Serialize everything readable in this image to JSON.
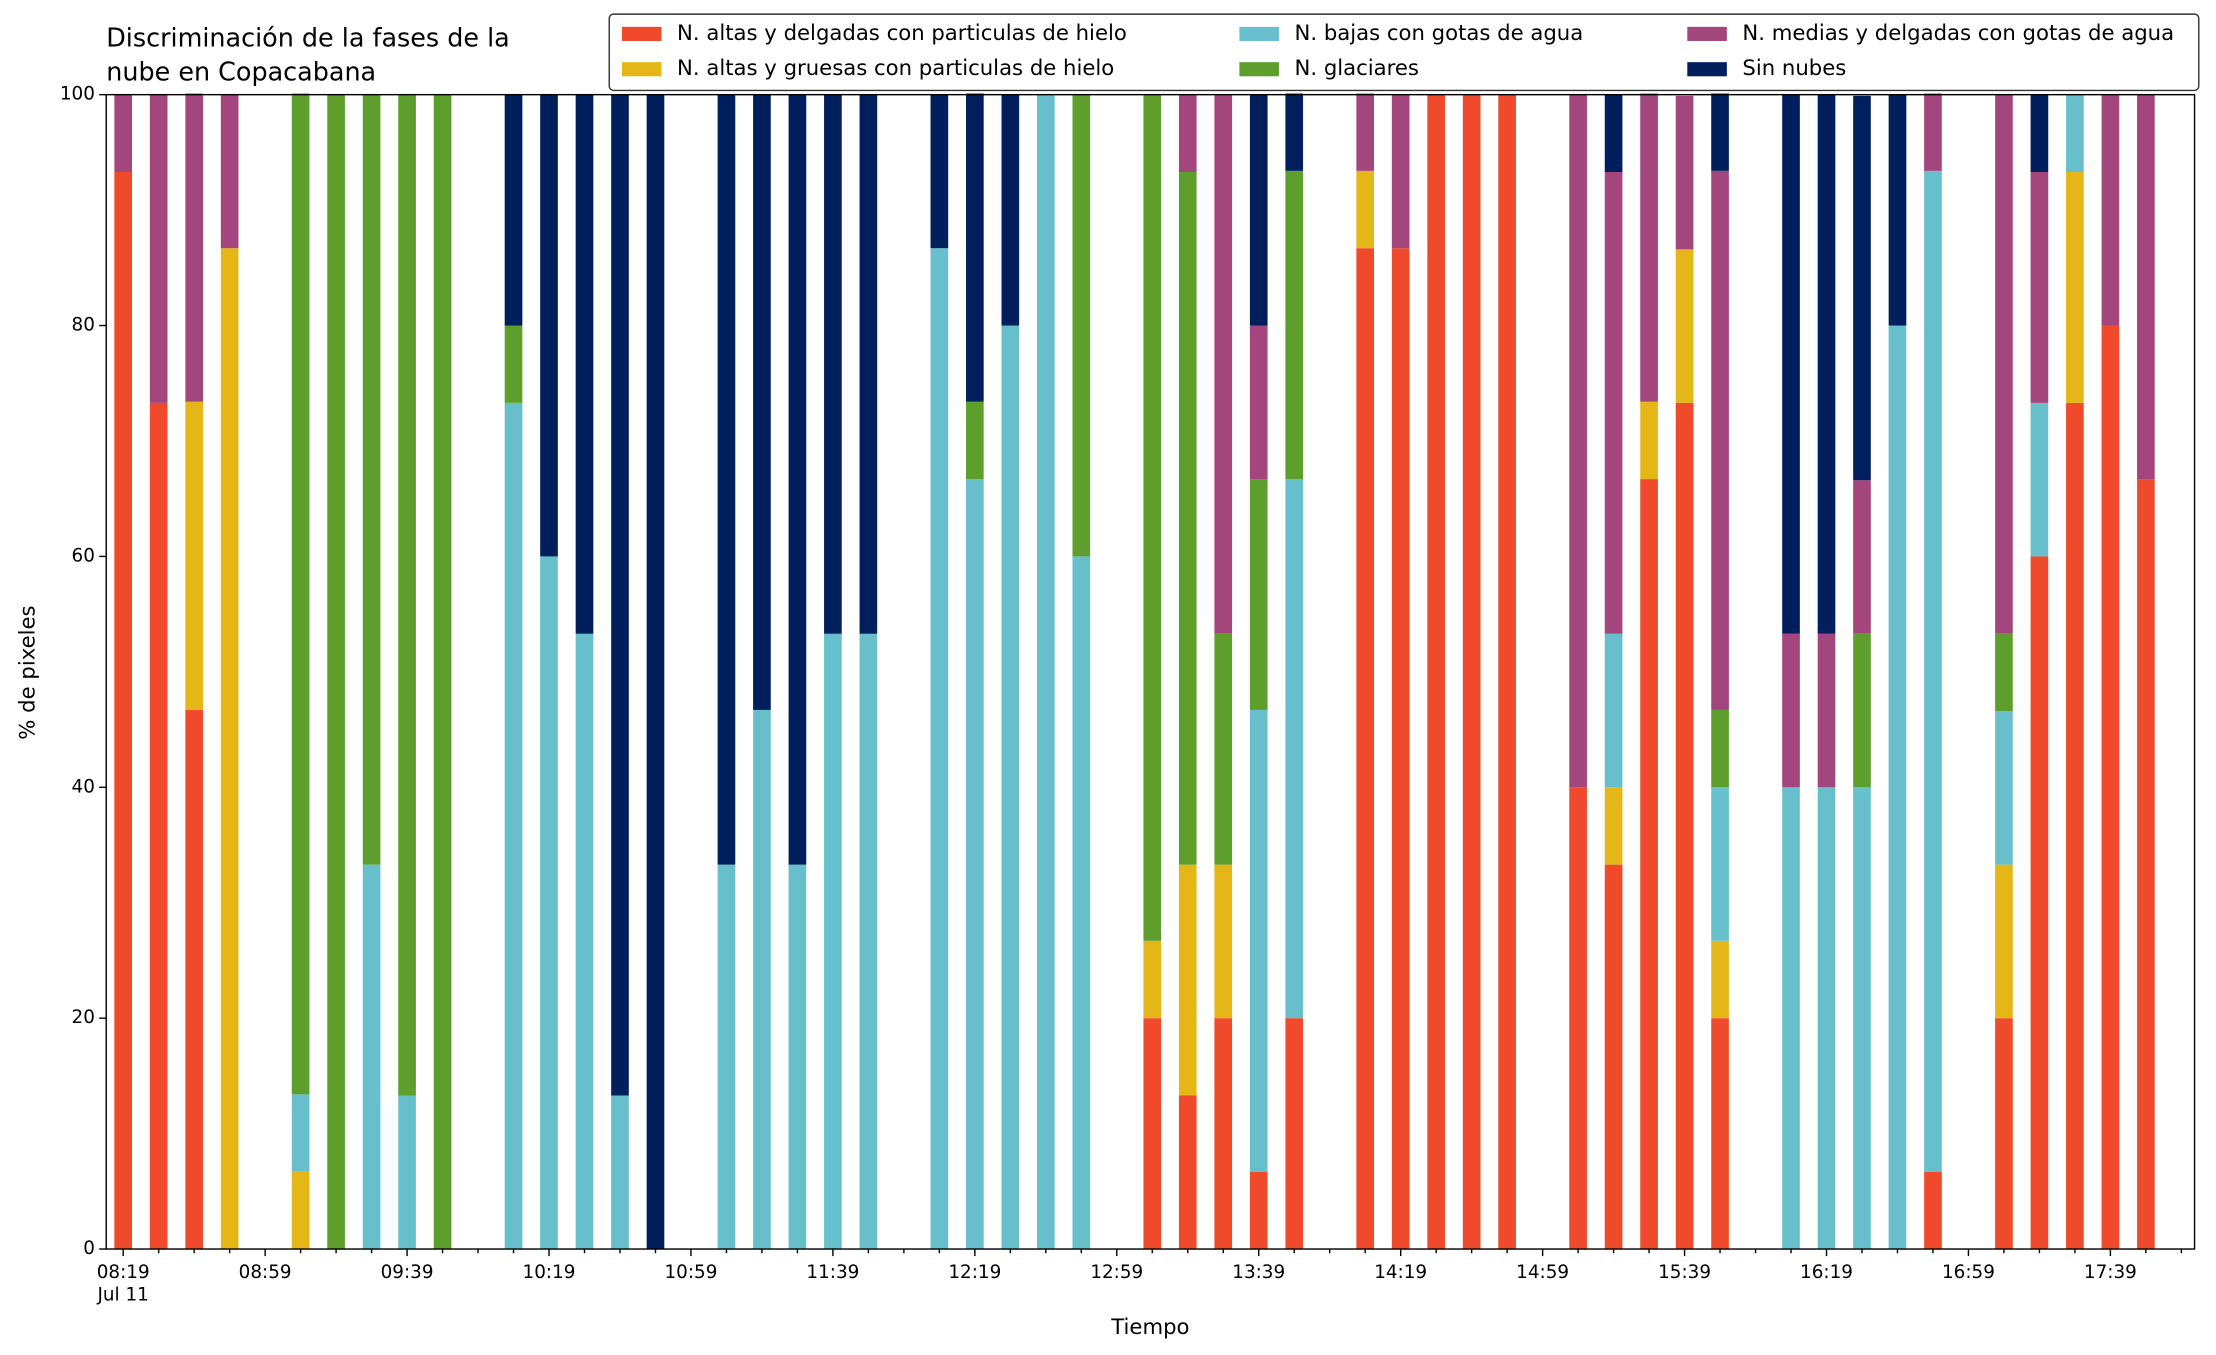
{
  "chart_data": {
    "type": "stacked_bar",
    "title": [
      "Discriminación de la fases de la",
      "nube en Copacabana"
    ],
    "x_label": "Tiempo",
    "y_label": "% de pixeles",
    "date_label": "Jul 11",
    "categories": [
      "08:19",
      null,
      null,
      null,
      "08:59",
      null,
      null,
      null,
      "09:39",
      null,
      null,
      null,
      "10:19",
      null,
      null,
      null,
      "10:59",
      null,
      null,
      null,
      "11:39",
      null,
      null,
      null,
      "12:19",
      null,
      null,
      null,
      "12:59",
      null,
      null,
      null,
      "13:39",
      null,
      null,
      null,
      "14:19",
      null,
      null,
      null,
      "14:59",
      null,
      null,
      null,
      "15:39",
      null,
      null,
      null,
      "16:19",
      null,
      null,
      null,
      "16:59",
      null,
      null,
      null,
      "17:39",
      null,
      null
    ],
    "ylim": [
      0,
      100
    ],
    "yticks": [
      0,
      20,
      40,
      60,
      80,
      100
    ],
    "legend": "upper right",
    "series": [
      {
        "name": "N. altas y delgadas con particulas de hielo",
        "color": "#ef4a2b",
        "values": [
          93.3,
          73.3,
          46.7,
          0,
          null,
          0,
          0,
          0,
          0,
          0,
          null,
          0,
          0,
          0,
          0,
          0,
          null,
          0,
          0,
          0,
          0,
          0,
          null,
          0,
          0,
          0,
          0,
          0,
          null,
          20,
          13.3,
          20,
          6.7,
          20,
          null,
          86.7,
          86.7,
          100,
          100,
          100,
          null,
          40,
          33.3,
          66.7,
          73.3,
          20,
          null,
          0,
          0,
          0,
          0,
          6.7,
          null,
          20,
          60,
          73.3,
          80,
          66.7,
          null
        ]
      },
      {
        "name": "N. altas y gruesas con particulas de hielo",
        "color": "#e5b618",
        "values": [
          0,
          0,
          26.7,
          86.7,
          null,
          6.7,
          0,
          0,
          0,
          0,
          null,
          0,
          0,
          0,
          0,
          0,
          null,
          0,
          0,
          0,
          0,
          0,
          null,
          0,
          0,
          0,
          0,
          0,
          null,
          6.7,
          20,
          13.3,
          0,
          0,
          null,
          6.7,
          0,
          0,
          0,
          0,
          null,
          0,
          6.7,
          6.7,
          13.3,
          6.7,
          null,
          0,
          0,
          0,
          0,
          0,
          null,
          13.3,
          0,
          20,
          0,
          0,
          null
        ]
      },
      {
        "name": "N. bajas con gotas de agua",
        "color": "#67bfcb",
        "values": [
          0,
          0,
          0,
          0,
          null,
          6.7,
          0,
          33.3,
          13.3,
          0,
          null,
          73.3,
          60,
          53.3,
          13.3,
          0,
          null,
          33.3,
          46.7,
          33.3,
          53.3,
          53.3,
          null,
          86.7,
          66.7,
          80,
          100,
          60,
          null,
          0,
          0,
          0,
          40,
          46.7,
          null,
          0,
          0,
          0,
          0,
          0,
          null,
          0,
          13.3,
          0,
          0,
          13.3,
          null,
          40,
          40,
          40,
          80,
          86.7,
          null,
          13.3,
          13.3,
          6.7,
          0,
          0,
          null
        ]
      },
      {
        "name": "N. glaciares",
        "color": "#5d9e2d",
        "values": [
          0,
          0,
          0,
          0,
          null,
          86.7,
          100,
          66.7,
          86.7,
          100,
          null,
          6.7,
          0,
          0,
          0,
          0,
          null,
          0,
          0,
          0,
          0,
          0,
          null,
          0,
          6.7,
          0,
          0,
          40,
          null,
          73.3,
          60,
          20,
          20,
          26.7,
          null,
          0,
          0,
          0,
          0,
          0,
          null,
          0,
          0,
          0,
          0,
          6.7,
          null,
          0,
          0,
          13.3,
          0,
          0,
          null,
          6.7,
          0,
          0,
          0,
          0,
          null
        ]
      },
      {
        "name": "N. medias y delgadas con gotas de agua",
        "color": "#a2467d",
        "values": [
          6.7,
          26.7,
          26.7,
          13.3,
          null,
          0,
          0,
          0,
          0,
          0,
          null,
          0,
          0,
          0,
          0,
          0,
          null,
          0,
          0,
          0,
          0,
          0,
          null,
          0,
          0,
          0,
          0,
          0,
          null,
          0,
          6.7,
          46.7,
          13.3,
          0,
          null,
          6.7,
          13.3,
          0,
          0,
          0,
          null,
          60,
          40,
          26.7,
          13.3,
          46.7,
          null,
          13.3,
          13.3,
          13.3,
          0,
          6.7,
          null,
          46.7,
          20,
          0,
          20,
          33.3,
          null
        ]
      },
      {
        "name": "Sin nubes",
        "color": "#001f5c",
        "values": [
          0,
          0,
          0,
          0,
          null,
          0,
          0,
          0,
          0,
          0,
          null,
          20,
          40,
          46.7,
          86.7,
          100,
          null,
          66.7,
          53.3,
          66.7,
          46.7,
          46.7,
          null,
          13.3,
          26.7,
          20,
          0,
          0,
          null,
          0,
          0,
          0,
          20,
          6.7,
          null,
          0,
          0,
          0,
          0,
          0,
          null,
          0,
          6.7,
          0,
          0,
          6.7,
          null,
          46.7,
          46.7,
          33.3,
          20,
          0,
          null,
          0,
          6.7,
          0,
          0,
          0,
          null
        ]
      }
    ]
  }
}
